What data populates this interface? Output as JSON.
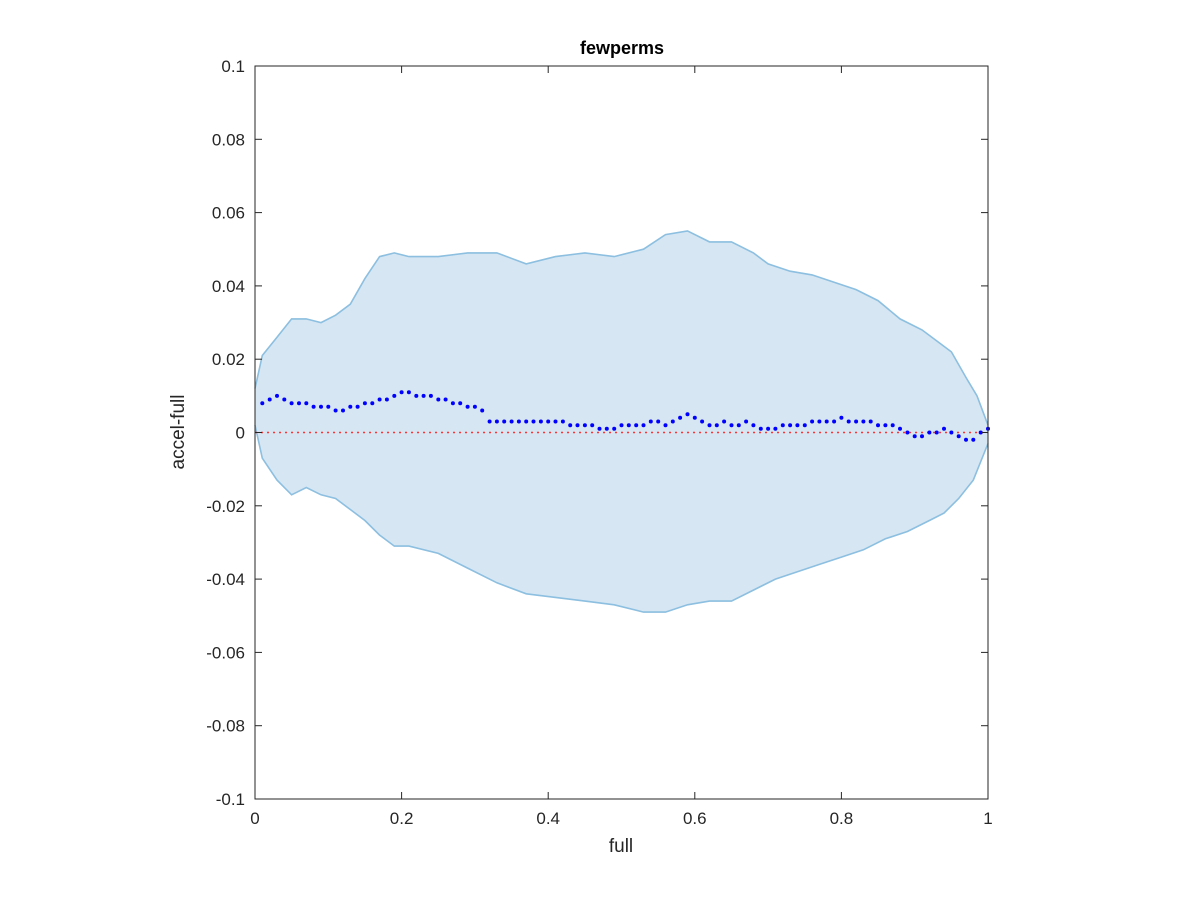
{
  "chart_data": {
    "type": "scatter",
    "title": "fewperms",
    "xlabel": "full",
    "ylabel": "accel-full",
    "xlim": [
      0,
      1
    ],
    "ylim": [
      -0.1,
      0.1
    ],
    "xticks": [
      0,
      0.2,
      0.4,
      0.6,
      0.8,
      1
    ],
    "xtick_labels": [
      "0",
      "0.2",
      "0.4",
      "0.6",
      "0.8",
      "1"
    ],
    "yticks": [
      -0.1,
      -0.08,
      -0.06,
      -0.04,
      -0.02,
      0,
      0.02,
      0.04,
      0.06,
      0.08,
      0.1
    ],
    "ytick_labels": [
      "-0.1",
      "-0.08",
      "-0.06",
      "-0.04",
      "-0.02",
      "0",
      "0.02",
      "0.04",
      "0.06",
      "0.08",
      "0.1"
    ],
    "grid": false,
    "band": {
      "color_fill": "#d6e6f3",
      "color_edge": "#8cbfe0",
      "upper": [
        [
          0,
          0.012
        ],
        [
          0.01,
          0.021
        ],
        [
          0.03,
          0.026
        ],
        [
          0.05,
          0.031
        ],
        [
          0.07,
          0.031
        ],
        [
          0.09,
          0.03
        ],
        [
          0.11,
          0.032
        ],
        [
          0.13,
          0.035
        ],
        [
          0.15,
          0.042
        ],
        [
          0.17,
          0.048
        ],
        [
          0.19,
          0.049
        ],
        [
          0.21,
          0.048
        ],
        [
          0.25,
          0.048
        ],
        [
          0.29,
          0.049
        ],
        [
          0.33,
          0.049
        ],
        [
          0.37,
          0.046
        ],
        [
          0.41,
          0.048
        ],
        [
          0.45,
          0.049
        ],
        [
          0.49,
          0.048
        ],
        [
          0.53,
          0.05
        ],
        [
          0.56,
          0.054
        ],
        [
          0.59,
          0.055
        ],
        [
          0.62,
          0.052
        ],
        [
          0.65,
          0.052
        ],
        [
          0.68,
          0.049
        ],
        [
          0.7,
          0.046
        ],
        [
          0.73,
          0.044
        ],
        [
          0.76,
          0.043
        ],
        [
          0.79,
          0.041
        ],
        [
          0.82,
          0.039
        ],
        [
          0.85,
          0.036
        ],
        [
          0.88,
          0.031
        ],
        [
          0.91,
          0.028
        ],
        [
          0.93,
          0.025
        ],
        [
          0.95,
          0.022
        ],
        [
          0.97,
          0.015
        ],
        [
          0.985,
          0.01
        ],
        [
          1,
          0.002
        ]
      ],
      "lower": [
        [
          0,
          0.002
        ],
        [
          0.01,
          -0.007
        ],
        [
          0.03,
          -0.013
        ],
        [
          0.05,
          -0.017
        ],
        [
          0.07,
          -0.015
        ],
        [
          0.09,
          -0.017
        ],
        [
          0.11,
          -0.018
        ],
        [
          0.13,
          -0.021
        ],
        [
          0.15,
          -0.024
        ],
        [
          0.17,
          -0.028
        ],
        [
          0.19,
          -0.031
        ],
        [
          0.21,
          -0.031
        ],
        [
          0.25,
          -0.033
        ],
        [
          0.29,
          -0.037
        ],
        [
          0.33,
          -0.041
        ],
        [
          0.37,
          -0.044
        ],
        [
          0.41,
          -0.045
        ],
        [
          0.45,
          -0.046
        ],
        [
          0.49,
          -0.047
        ],
        [
          0.53,
          -0.049
        ],
        [
          0.56,
          -0.049
        ],
        [
          0.59,
          -0.047
        ],
        [
          0.62,
          -0.046
        ],
        [
          0.65,
          -0.046
        ],
        [
          0.68,
          -0.043
        ],
        [
          0.71,
          -0.04
        ],
        [
          0.74,
          -0.038
        ],
        [
          0.77,
          -0.036
        ],
        [
          0.8,
          -0.034
        ],
        [
          0.83,
          -0.032
        ],
        [
          0.86,
          -0.029
        ],
        [
          0.89,
          -0.027
        ],
        [
          0.92,
          -0.024
        ],
        [
          0.94,
          -0.022
        ],
        [
          0.96,
          -0.018
        ],
        [
          0.98,
          -0.013
        ],
        [
          1,
          -0.003
        ]
      ]
    },
    "series": [
      {
        "color": "#0000ff",
        "points": [
          [
            0.01,
            0.008
          ],
          [
            0.02,
            0.009
          ],
          [
            0.03,
            0.01
          ],
          [
            0.04,
            0.009
          ],
          [
            0.05,
            0.008
          ],
          [
            0.06,
            0.008
          ],
          [
            0.07,
            0.008
          ],
          [
            0.08,
            0.007
          ],
          [
            0.09,
            0.007
          ],
          [
            0.1,
            0.007
          ],
          [
            0.11,
            0.006
          ],
          [
            0.12,
            0.006
          ],
          [
            0.13,
            0.007
          ],
          [
            0.14,
            0.007
          ],
          [
            0.15,
            0.008
          ],
          [
            0.16,
            0.008
          ],
          [
            0.17,
            0.009
          ],
          [
            0.18,
            0.009
          ],
          [
            0.19,
            0.01
          ],
          [
            0.2,
            0.011
          ],
          [
            0.21,
            0.011
          ],
          [
            0.22,
            0.01
          ],
          [
            0.23,
            0.01
          ],
          [
            0.24,
            0.01
          ],
          [
            0.25,
            0.009
          ],
          [
            0.26,
            0.009
          ],
          [
            0.27,
            0.008
          ],
          [
            0.28,
            0.008
          ],
          [
            0.29,
            0.007
          ],
          [
            0.3,
            0.007
          ],
          [
            0.31,
            0.006
          ],
          [
            0.32,
            0.003
          ],
          [
            0.33,
            0.003
          ],
          [
            0.34,
            0.003
          ],
          [
            0.35,
            0.003
          ],
          [
            0.36,
            0.003
          ],
          [
            0.37,
            0.003
          ],
          [
            0.38,
            0.003
          ],
          [
            0.39,
            0.003
          ],
          [
            0.4,
            0.003
          ],
          [
            0.41,
            0.003
          ],
          [
            0.42,
            0.003
          ],
          [
            0.43,
            0.002
          ],
          [
            0.44,
            0.002
          ],
          [
            0.45,
            0.002
          ],
          [
            0.46,
            0.002
          ],
          [
            0.47,
            0.001
          ],
          [
            0.48,
            0.001
          ],
          [
            0.49,
            0.001
          ],
          [
            0.5,
            0.002
          ],
          [
            0.51,
            0.002
          ],
          [
            0.52,
            0.002
          ],
          [
            0.53,
            0.002
          ],
          [
            0.54,
            0.003
          ],
          [
            0.55,
            0.003
          ],
          [
            0.56,
            0.002
          ],
          [
            0.57,
            0.003
          ],
          [
            0.58,
            0.004
          ],
          [
            0.59,
            0.005
          ],
          [
            0.6,
            0.004
          ],
          [
            0.61,
            0.003
          ],
          [
            0.62,
            0.002
          ],
          [
            0.63,
            0.002
          ],
          [
            0.64,
            0.003
          ],
          [
            0.65,
            0.002
          ],
          [
            0.66,
            0.002
          ],
          [
            0.67,
            0.003
          ],
          [
            0.68,
            0.002
          ],
          [
            0.69,
            0.001
          ],
          [
            0.7,
            0.001
          ],
          [
            0.71,
            0.001
          ],
          [
            0.72,
            0.002
          ],
          [
            0.73,
            0.002
          ],
          [
            0.74,
            0.002
          ],
          [
            0.75,
            0.002
          ],
          [
            0.76,
            0.003
          ],
          [
            0.77,
            0.003
          ],
          [
            0.78,
            0.003
          ],
          [
            0.79,
            0.003
          ],
          [
            0.8,
            0.004
          ],
          [
            0.81,
            0.003
          ],
          [
            0.82,
            0.003
          ],
          [
            0.83,
            0.003
          ],
          [
            0.84,
            0.003
          ],
          [
            0.85,
            0.002
          ],
          [
            0.86,
            0.002
          ],
          [
            0.87,
            0.002
          ],
          [
            0.88,
            0.001
          ],
          [
            0.89,
            0
          ],
          [
            0.9,
            -0.001
          ],
          [
            0.91,
            -0.001
          ],
          [
            0.92,
            0
          ],
          [
            0.93,
            0
          ],
          [
            0.94,
            0.001
          ],
          [
            0.95,
            0
          ],
          [
            0.96,
            -0.001
          ],
          [
            0.97,
            -0.002
          ],
          [
            0.98,
            -0.002
          ],
          [
            0.99,
            0
          ],
          [
            1,
            0.001
          ]
        ]
      }
    ],
    "reference_line": {
      "y": 0,
      "color": "#ff3333",
      "style": "dotted"
    }
  }
}
